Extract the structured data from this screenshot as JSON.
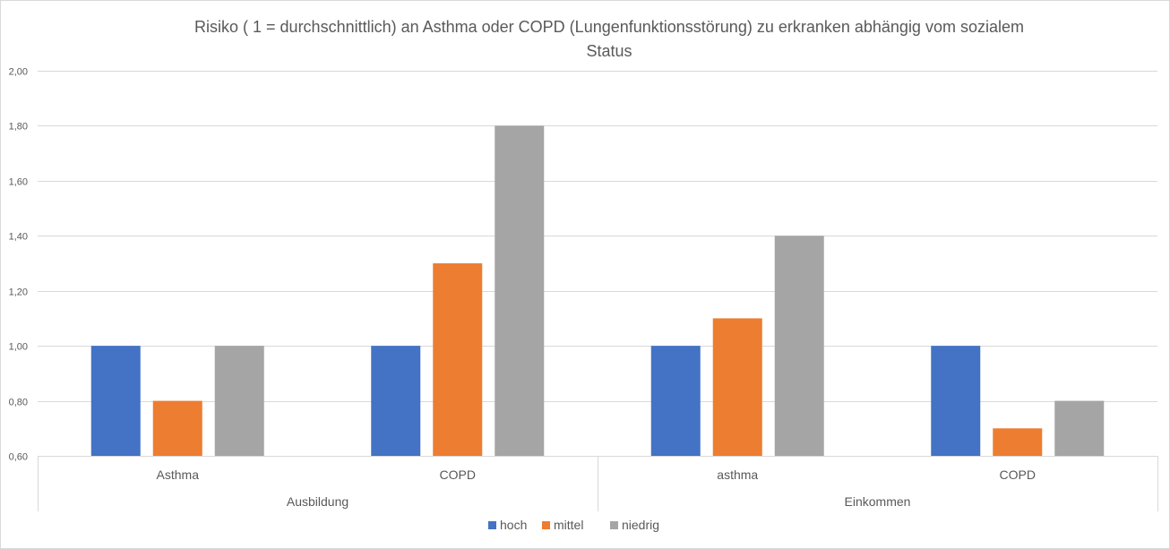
{
  "chart_data": {
    "type": "bar",
    "title_lines": [
      "Risiko ( 1 = durchschnittlich) an Asthma oder COPD (Lungenfunktionsstörung)  zu erkranken abhängig vom sozialem",
      "Status"
    ],
    "xlabel": "",
    "ylabel": "",
    "ylim": [
      0.6,
      2.0
    ],
    "y_ticks": [
      0.6,
      0.8,
      1.0,
      1.2,
      1.4,
      1.6,
      1.8,
      2.0
    ],
    "y_tick_labels": [
      "0,60",
      "0,80",
      "1,00",
      "1,20",
      "1,40",
      "1,60",
      "1,80",
      "2,00"
    ],
    "groups": [
      {
        "label": "Ausbildung",
        "categories": [
          "Asthma",
          "COPD"
        ]
      },
      {
        "label": "Einkommen",
        "categories": [
          "asthma",
          "COPD"
        ]
      }
    ],
    "categories": [
      "Asthma",
      "COPD",
      "asthma",
      "COPD"
    ],
    "series": [
      {
        "name": "hoch",
        "color": "#4472c4",
        "values": [
          1.0,
          1.0,
          1.0,
          1.0
        ]
      },
      {
        "name": "mittel",
        "color": "#ed7d31",
        "values": [
          0.8,
          1.3,
          1.1,
          0.7
        ]
      },
      {
        "name": "niedrig",
        "color": "#a5a5a5",
        "values": [
          1.0,
          1.8,
          1.4,
          0.8
        ]
      }
    ],
    "grid": true,
    "legend_position": "bottom"
  }
}
